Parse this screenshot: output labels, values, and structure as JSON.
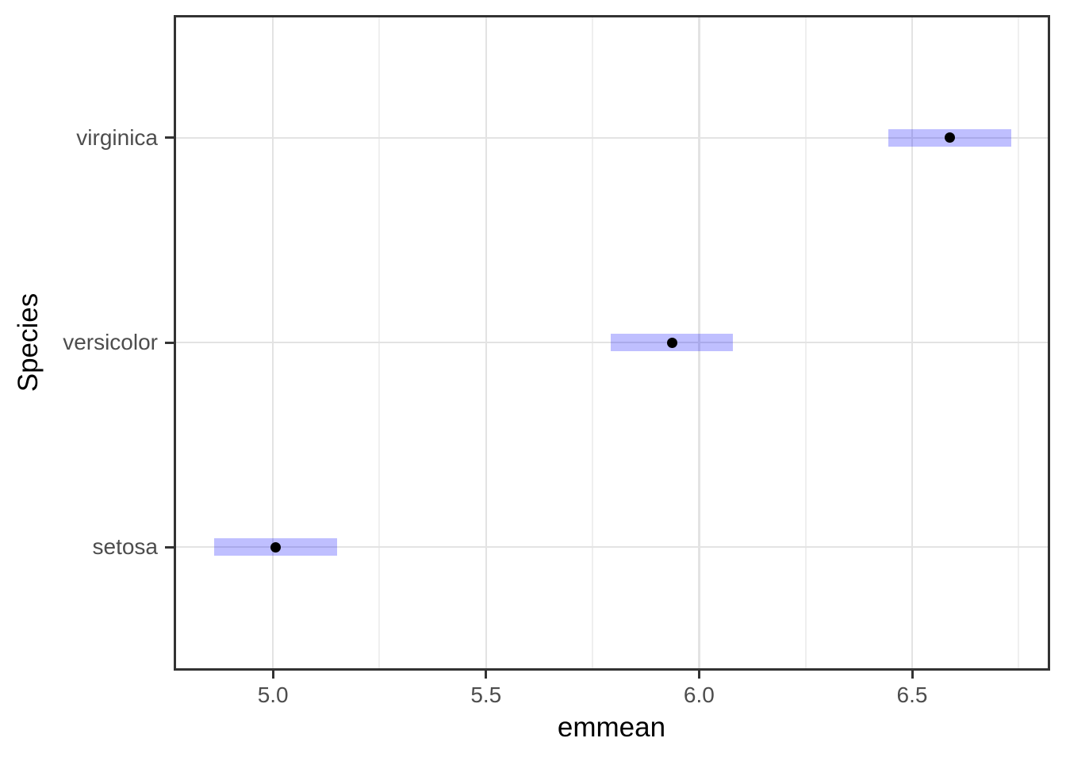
{
  "chart_data": {
    "type": "pointrange",
    "orientation": "horizontal",
    "title": "",
    "xlabel": "emmean",
    "ylabel": "Species",
    "categories": [
      "setosa",
      "versicolor",
      "virginica"
    ],
    "series": [
      {
        "name": "setosa",
        "emmean": 5.006,
        "lower_cl": 4.862,
        "upper_cl": 5.15
      },
      {
        "name": "versicolor",
        "emmean": 5.936,
        "lower_cl": 5.792,
        "upper_cl": 6.08
      },
      {
        "name": "virginica",
        "emmean": 6.588,
        "lower_cl": 6.444,
        "upper_cl": 6.732
      }
    ],
    "xlim": [
      4.767,
      6.822
    ],
    "ylim": [
      0.4,
      3.6
    ],
    "x_major_ticks": [
      5.0,
      5.5,
      6.0,
      6.5
    ],
    "x_tick_labels": [
      "5.0",
      "5.5",
      "6.0",
      "6.5"
    ],
    "x_minor_ticks": [
      5.25,
      5.75,
      6.25,
      6.75
    ],
    "grid": true,
    "legend": "none"
  },
  "colors": {
    "background": "#ffffff",
    "panel_border": "#333333",
    "grid_major": "#e3e3e3",
    "grid_minor": "#efefef",
    "ci_bar_fill": "rgba(0,0,255,0.25)",
    "point": "#000000",
    "tick_mark": "#333333",
    "tick_label": "#4d4d4d",
    "axis_title": "#000000"
  }
}
